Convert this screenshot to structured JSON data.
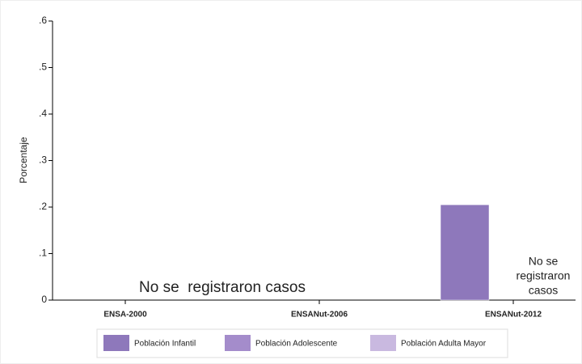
{
  "chart_data": {
    "type": "bar",
    "y_label": "Porcentaje",
    "categories": [
      "ENSA-2000",
      "ENSANut-2006",
      "ENSANut-2012"
    ],
    "series": [
      {
        "name": "Población Infantil",
        "color": "#8e78bb",
        "values": [
          null,
          null,
          0.205
        ]
      },
      {
        "name": "Población Adolescente",
        "color": "#a48ccb",
        "values": [
          null,
          null,
          null
        ]
      },
      {
        "name": "Población Adulta Mayor",
        "color": "#c9b9e0",
        "values": [
          null,
          null,
          null
        ]
      }
    ],
    "ylim": [
      0,
      0.6
    ],
    "yticks": [
      0,
      {
        "value": 0.1,
        "label": ".1"
      },
      {
        "value": 0.2,
        "label": ".2"
      },
      {
        "value": 0.3,
        "label": ".3"
      },
      {
        "value": 0.4,
        "label": ".4"
      },
      {
        "value": 0.5,
        "label": ".5"
      },
      {
        "value": 0.6,
        "label": ".6"
      }
    ],
    "annotations": [
      {
        "text": "No se  registraron casos"
      },
      {
        "lines": [
          "No se",
          "registraron",
          "casos"
        ]
      }
    ],
    "legend": "bottom"
  }
}
